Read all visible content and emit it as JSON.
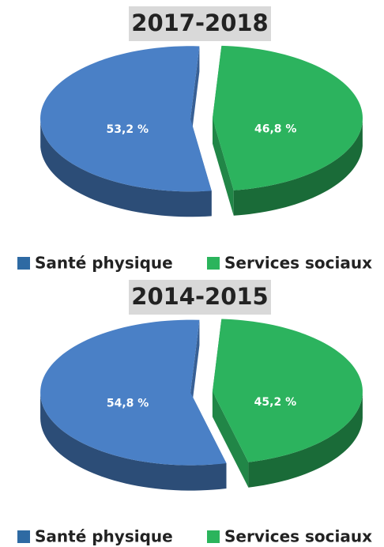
{
  "chart_data": [
    {
      "type": "pie",
      "title": "2017-2018",
      "categories": [
        "Santé physique",
        "Services sociaux"
      ],
      "values": [
        53.2,
        46.8
      ],
      "value_labels": [
        "53,2 %",
        "46,8 %"
      ],
      "colors": [
        "#4a80c6",
        "#2cb35e"
      ],
      "legend_colors": [
        "#2e6aa3",
        "#2bb45c"
      ]
    },
    {
      "type": "pie",
      "title": "2014-2015",
      "categories": [
        "Santé physique",
        "Services sociaux"
      ],
      "values": [
        54.8,
        45.2
      ],
      "value_labels": [
        "54,8 %",
        "45,2 %"
      ],
      "colors": [
        "#4a80c6",
        "#2cb35e"
      ],
      "legend_colors": [
        "#2e6aa3",
        "#2bb45c"
      ]
    }
  ]
}
